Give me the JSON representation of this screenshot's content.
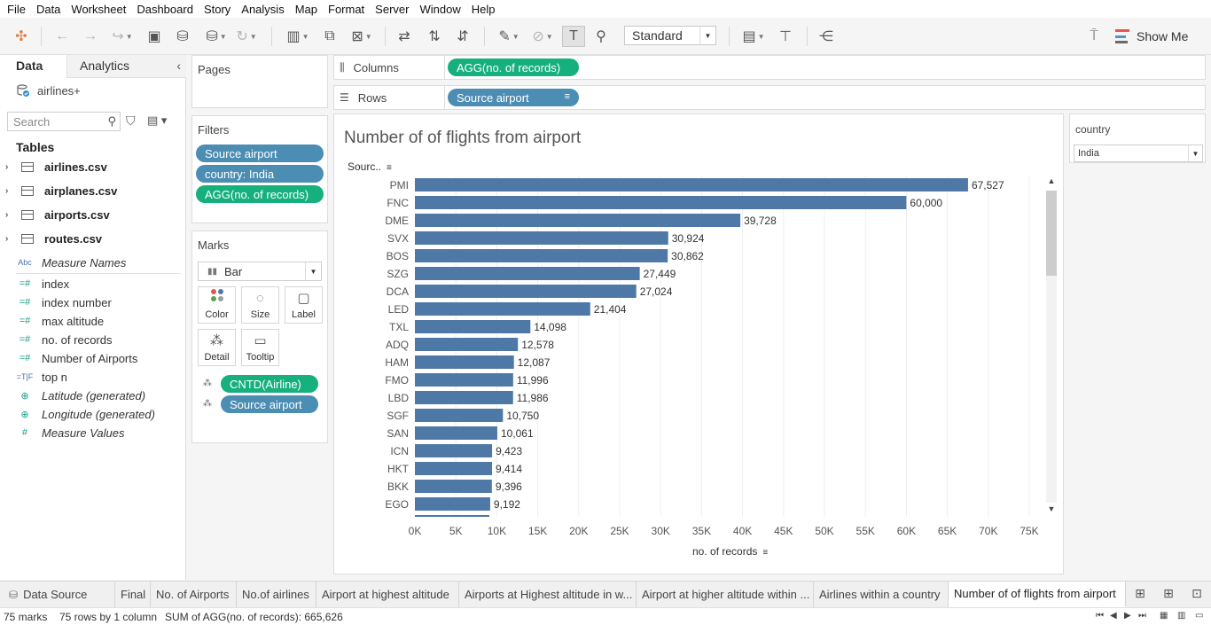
{
  "menu": [
    "File",
    "Data",
    "Worksheet",
    "Dashboard",
    "Story",
    "Analysis",
    "Map",
    "Format",
    "Server",
    "Window",
    "Help"
  ],
  "toolbar": {
    "fit": "Standard",
    "show_me": "Show Me",
    "show_me_colors": [
      "#e8564f",
      "#5b8fc7",
      "#6a6a6a"
    ]
  },
  "data_pane": {
    "tabs": [
      "Data",
      "Analytics"
    ],
    "datasource": "airlines+",
    "search_placeholder": "Search",
    "tables_title": "Tables",
    "tables": [
      "airlines.csv",
      "airplanes.csv",
      "airports.csv",
      "routes.csv"
    ],
    "measure_names": "Measure Names",
    "fields": [
      {
        "label": "index",
        "icon": "=#",
        "italic": false
      },
      {
        "label": "index number",
        "icon": "=#",
        "italic": false
      },
      {
        "label": "max altitude",
        "icon": "=#",
        "italic": false
      },
      {
        "label": "no. of records",
        "icon": "=#",
        "italic": false
      },
      {
        "label": "Number of Airports",
        "icon": "=#",
        "italic": false
      },
      {
        "label": "top n",
        "icon": "=T|F",
        "italic": false
      },
      {
        "label": "Latitude (generated)",
        "icon": "globe",
        "italic": true
      },
      {
        "label": "Longitude (generated)",
        "icon": "globe",
        "italic": true
      },
      {
        "label": "Measure Values",
        "icon": "#",
        "italic": true
      }
    ]
  },
  "pages": {
    "title": "Pages"
  },
  "filters": {
    "title": "Filters",
    "pills": [
      {
        "label": "Source airport",
        "color": "blue"
      },
      {
        "label": "country: India",
        "color": "blue"
      },
      {
        "label": "AGG(no. of records)",
        "color": "green"
      }
    ]
  },
  "marks": {
    "title": "Marks",
    "type": "Bar",
    "cards": [
      "Color",
      "Size",
      "Label",
      "Detail",
      "Tooltip"
    ],
    "pills": [
      {
        "label": "CNTD(Airline)",
        "color": "green"
      },
      {
        "label": "Source airport",
        "color": "blue"
      }
    ]
  },
  "shelves": {
    "columns_label": "Columns",
    "columns_pill": "AGG(no. of records)",
    "rows_label": "Rows",
    "rows_pill": "Source airport"
  },
  "chart_data": {
    "type": "bar",
    "orientation": "horizontal",
    "title": "Number of of flights from airport",
    "row_header": "Sourc..",
    "xlabel": "no. of records",
    "categories": [
      "PMI",
      "FNC",
      "DME",
      "SVX",
      "BOS",
      "SZG",
      "DCA",
      "LED",
      "TXL",
      "ADQ",
      "HAM",
      "FMO",
      "LBD",
      "SGF",
      "SAN",
      "ICN",
      "HKT",
      "BKK",
      "EGO"
    ],
    "values": [
      67527,
      60000,
      39728,
      30924,
      30862,
      27449,
      27024,
      21404,
      14098,
      12578,
      12087,
      11996,
      11986,
      10750,
      10061,
      9423,
      9414,
      9396,
      9192
    ],
    "value_labels": [
      "67,527",
      "60,000",
      "39,728",
      "30,924",
      "30,862",
      "27,449",
      "27,024",
      "21,404",
      "14,098",
      "12,578",
      "12,087",
      "11,996",
      "11,986",
      "10,750",
      "10,061",
      "9,423",
      "9,414",
      "9,396",
      "9,192"
    ],
    "xlim": [
      0,
      75000
    ],
    "xticks": [
      0,
      5000,
      10000,
      15000,
      20000,
      25000,
      30000,
      35000,
      40000,
      45000,
      50000,
      55000,
      60000,
      65000,
      70000,
      75000
    ],
    "xtick_labels": [
      "0K",
      "5K",
      "10K",
      "15K",
      "20K",
      "25K",
      "30K",
      "35K",
      "40K",
      "45K",
      "50K",
      "55K",
      "60K",
      "65K",
      "70K",
      "75K"
    ],
    "bar_color": "#4e79a7",
    "grid": true
  },
  "country_filter": {
    "title": "country",
    "value": "India"
  },
  "sheet_tabs": {
    "datasource": "Data Source",
    "tabs": [
      "Final",
      "No. of Airports",
      "No.of airlines",
      "Airport at highest altitude",
      "Airports at Highest altitude in w...",
      "Airport at higher altitude within ...",
      "Airlines within a country",
      "Number of of flights from airport"
    ],
    "active": "Number of of flights from airport"
  },
  "status": {
    "marks": "75 marks",
    "dims": "75 rows by 1 column",
    "sum": "SUM of AGG(no. of records): 665,626"
  }
}
